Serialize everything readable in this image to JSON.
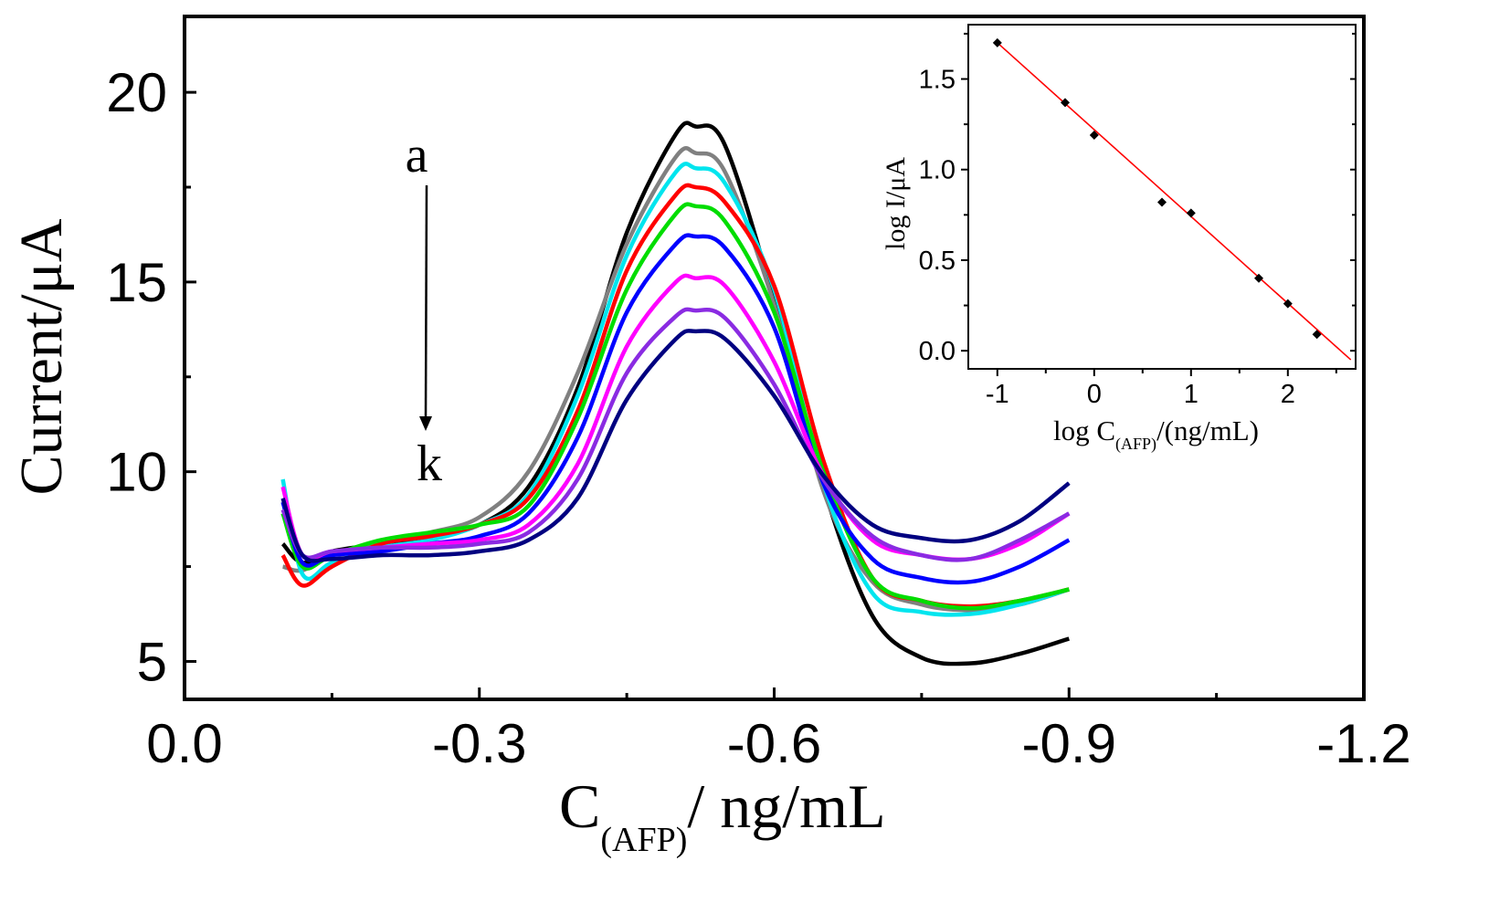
{
  "chart_data": [
    {
      "type": "line",
      "xlabel": "C",
      "xlabel_sub": "(AFP)",
      "xlabel_tail": "/ ng/mL",
      "ylabel": "Current/μA",
      "xlim": [
        0.0,
        -1.2
      ],
      "ylim": [
        4,
        22
      ],
      "xticks": [
        0.0,
        -0.3,
        -0.6,
        -0.9,
        -1.2
      ],
      "xtick_labels": [
        "0.0",
        "-0.3",
        "-0.6",
        "-0.9",
        "-1.2"
      ],
      "yticks": [
        5,
        10,
        15,
        20
      ],
      "ytick_labels": [
        "5",
        "10",
        "15",
        "20"
      ],
      "grid": false,
      "annotation_top": "a",
      "annotation_bottom": "k",
      "x": [
        -0.1,
        -0.12,
        -0.15,
        -0.2,
        -0.25,
        -0.3,
        -0.35,
        -0.4,
        -0.45,
        -0.5,
        -0.52,
        -0.55,
        -0.6,
        -0.65,
        -0.7,
        -0.75,
        -0.8,
        -0.85,
        -0.9
      ],
      "series": [
        {
          "color": "#000000",
          "values": [
            8.1,
            7.6,
            7.9,
            8.1,
            8.3,
            8.6,
            9.6,
            12.2,
            16.3,
            18.9,
            19.1,
            18.6,
            14.5,
            9.6,
            6.2,
            5.1,
            4.95,
            5.2,
            5.6
          ]
        },
        {
          "color": "#808080",
          "values": [
            7.5,
            7.4,
            7.8,
            8.1,
            8.4,
            8.8,
            10.0,
            12.6,
            16.0,
            18.3,
            18.4,
            17.9,
            14.4,
            9.5,
            7.1,
            6.5,
            6.35,
            6.5,
            6.9
          ]
        },
        {
          "color": "#00e5ee",
          "values": [
            9.8,
            7.3,
            7.6,
            8.0,
            8.2,
            8.6,
            9.4,
            12.0,
            15.7,
            17.9,
            18.0,
            17.6,
            14.8,
            9.7,
            6.8,
            6.3,
            6.25,
            6.5,
            6.9
          ]
        },
        {
          "color": "#ff0000",
          "values": [
            7.8,
            7.0,
            7.5,
            8.1,
            8.3,
            8.6,
            9.3,
            11.6,
            15.3,
            17.3,
            17.5,
            17.1,
            14.9,
            10.3,
            7.2,
            6.6,
            6.45,
            6.6,
            6.9
          ]
        },
        {
          "color": "#00dd00",
          "values": [
            8.9,
            7.5,
            7.8,
            8.2,
            8.4,
            8.6,
            9.1,
            11.4,
            14.8,
            16.8,
            17.0,
            16.6,
            14.2,
            10.0,
            7.2,
            6.6,
            6.4,
            6.6,
            6.9
          ]
        },
        {
          "color": "#0000ff",
          "values": [
            9.2,
            7.6,
            7.8,
            7.9,
            8.1,
            8.3,
            8.9,
            10.9,
            14.2,
            16.0,
            16.2,
            15.9,
            13.8,
            9.7,
            7.7,
            7.2,
            7.1,
            7.5,
            8.2
          ]
        },
        {
          "color": "#ff00ff",
          "values": [
            9.6,
            7.8,
            7.9,
            8.0,
            8.1,
            8.2,
            8.6,
            10.2,
            13.3,
            15.0,
            15.1,
            14.9,
            12.9,
            9.9,
            8.2,
            7.8,
            7.7,
            8.1,
            8.9
          ]
        },
        {
          "color": "#8a2be2",
          "values": [
            9.0,
            7.8,
            7.9,
            8.0,
            8.0,
            8.1,
            8.4,
            9.8,
            12.6,
            14.1,
            14.25,
            14.05,
            12.3,
            9.8,
            8.3,
            7.8,
            7.7,
            8.2,
            8.9
          ]
        },
        {
          "color": "#000080",
          "values": [
            9.3,
            7.8,
            7.7,
            7.8,
            7.8,
            7.9,
            8.2,
            9.3,
            11.9,
            13.5,
            13.7,
            13.5,
            12.0,
            9.9,
            8.6,
            8.25,
            8.2,
            8.7,
            9.7
          ]
        }
      ]
    },
    {
      "type": "scatter",
      "xlabel": "log C",
      "xlabel_sub": "(AFP)",
      "xlabel_tail": "/(ng/mL)",
      "ylabel": "log I/μA",
      "xlim": [
        -1.3,
        2.7
      ],
      "ylim": [
        -0.1,
        1.8
      ],
      "xticks": [
        -1,
        0,
        1,
        2
      ],
      "xtick_labels": [
        "-1",
        "0",
        "1",
        "2"
      ],
      "yticks": [
        0.0,
        0.5,
        1.0,
        1.5
      ],
      "ytick_labels": [
        "0.0",
        "0.5",
        "1.0",
        "1.5"
      ],
      "grid": false,
      "points": {
        "x": [
          -1.0,
          -0.3,
          0.0,
          0.7,
          1.0,
          1.7,
          2.0,
          2.3
        ],
        "y": [
          1.7,
          1.37,
          1.19,
          0.82,
          0.76,
          0.4,
          0.26,
          0.09
        ]
      },
      "fit": {
        "x": [
          -1.0,
          2.65
        ],
        "y": [
          1.7,
          -0.05
        ],
        "color": "#ff0000"
      }
    }
  ]
}
